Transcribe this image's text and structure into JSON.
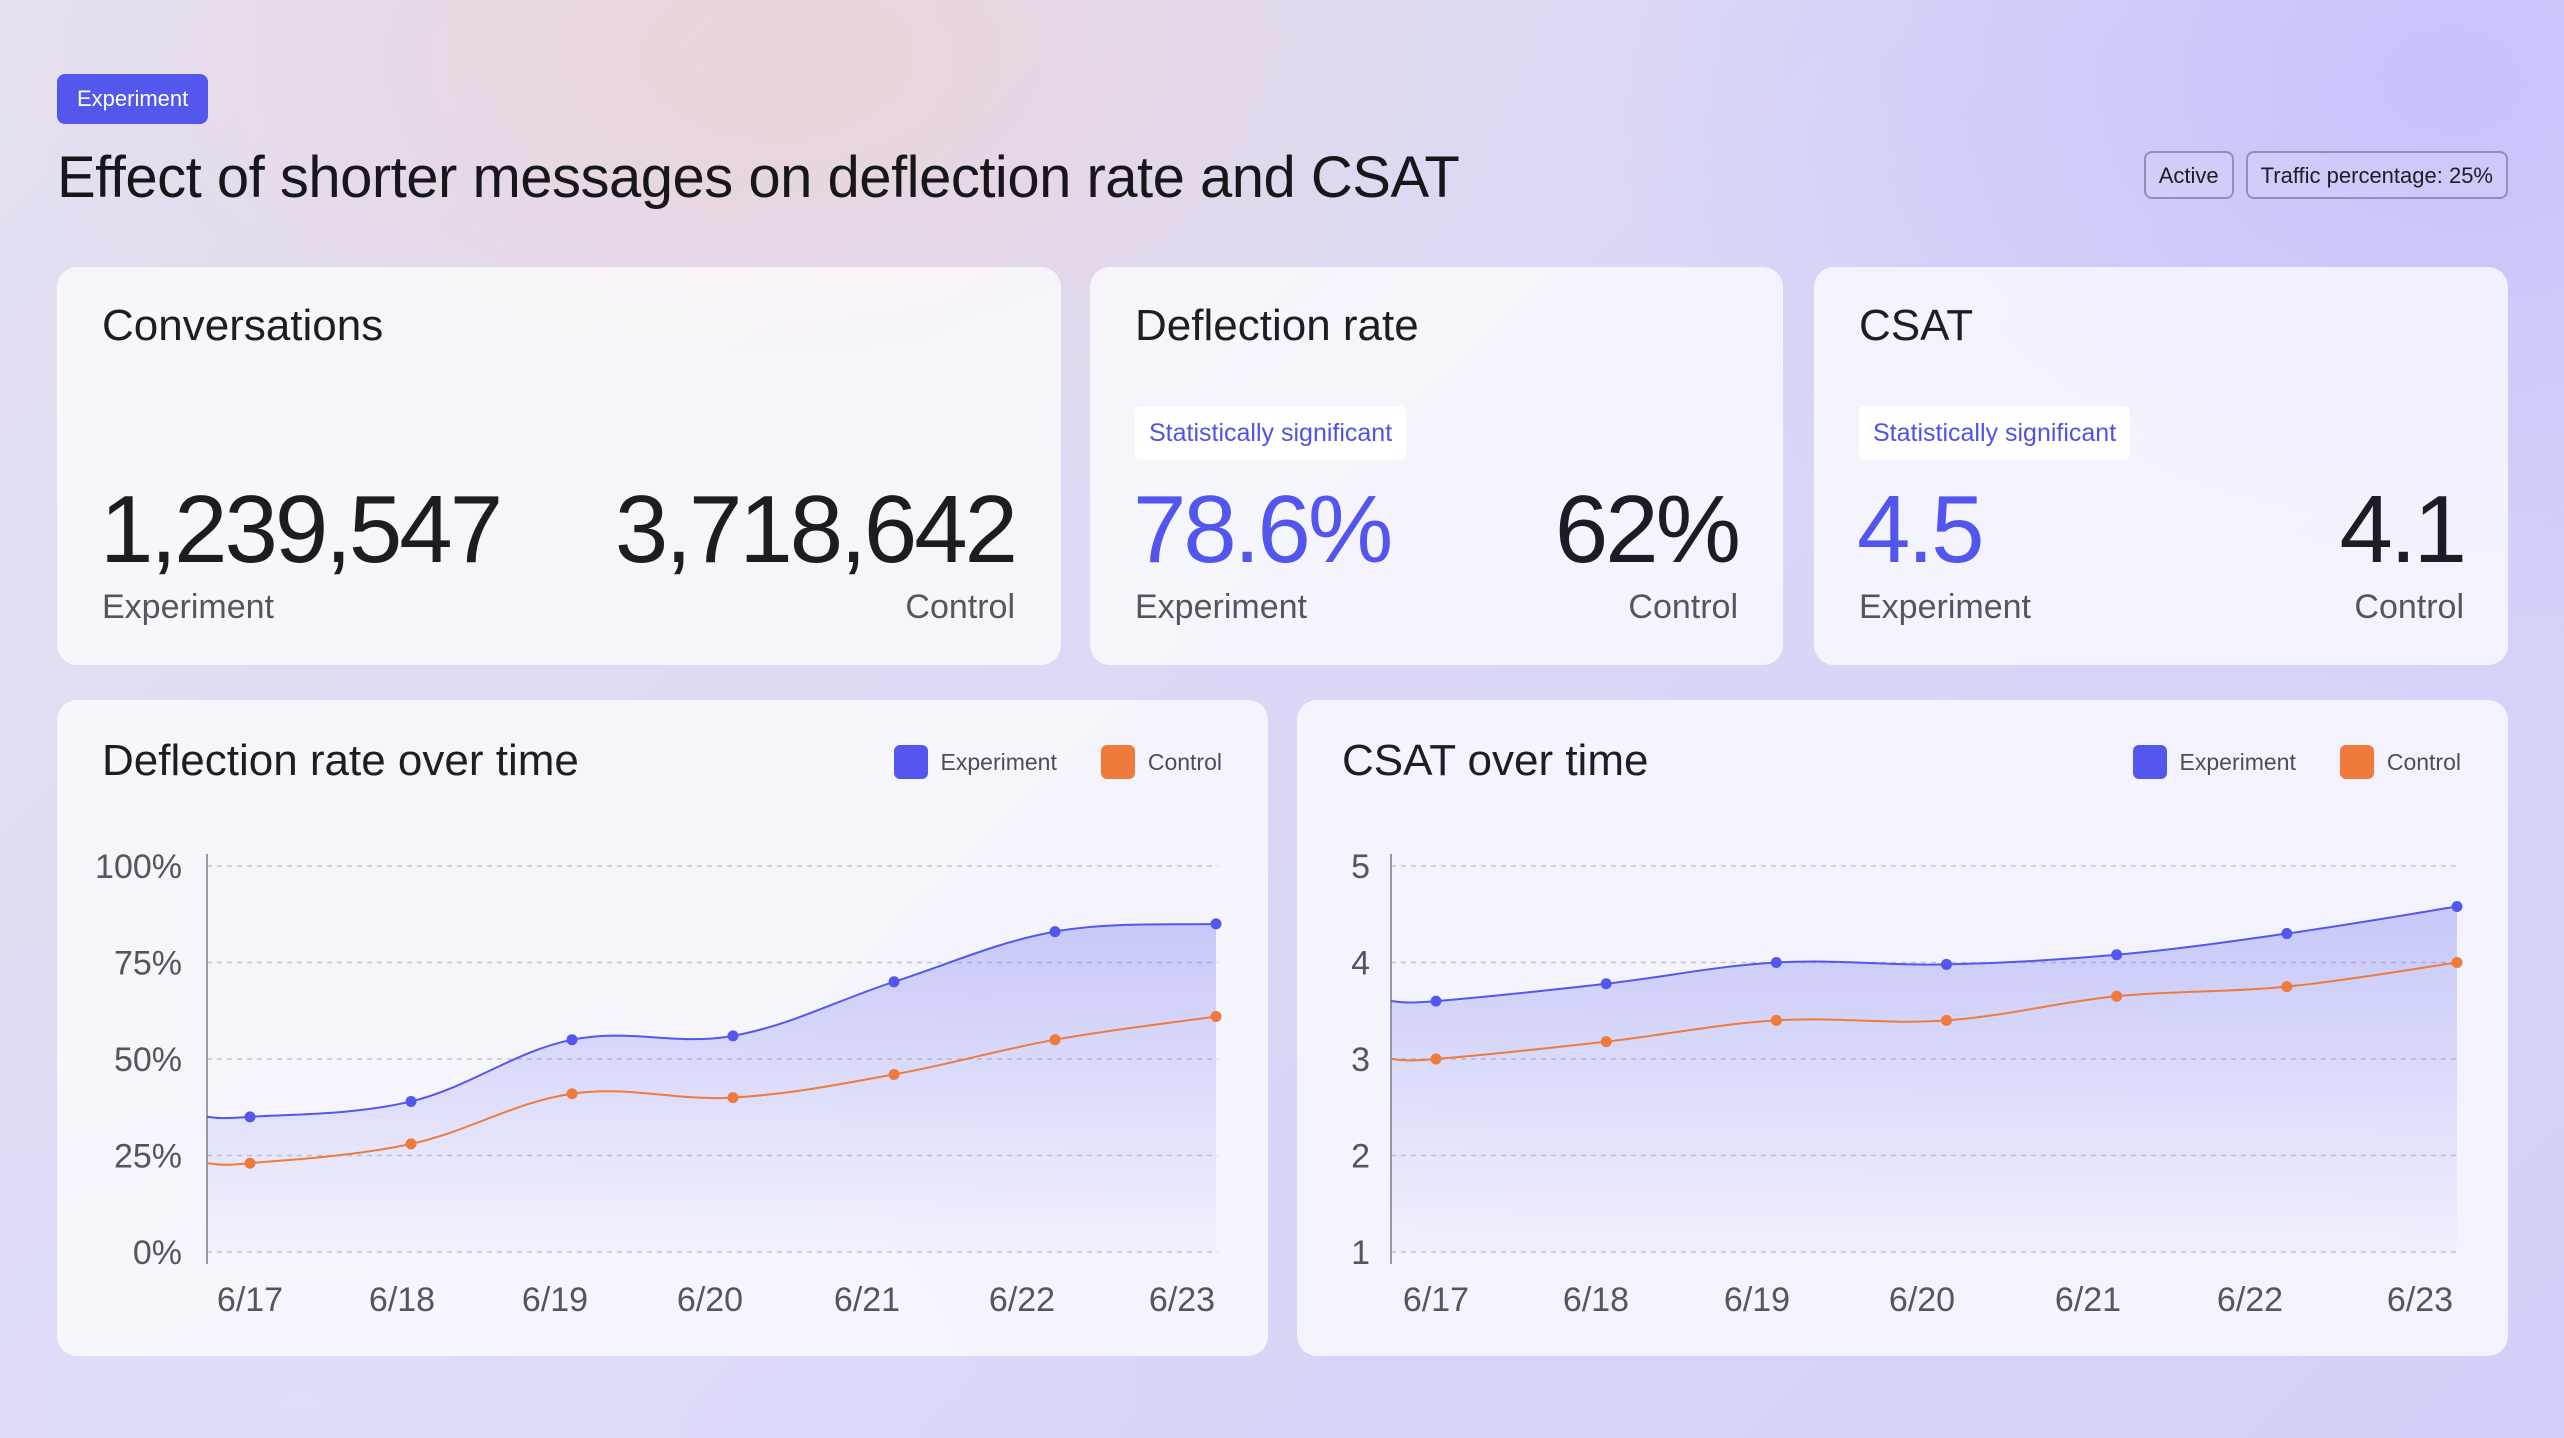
{
  "header": {
    "tag": "Experiment",
    "title": "Effect of shorter messages on deflection rate and CSAT",
    "status_chip": "Active",
    "traffic_chip": "Traffic percentage: 25%"
  },
  "stats": {
    "conversations": {
      "title": "Conversations",
      "experiment_value": "1,239,547",
      "experiment_label": "Experiment",
      "control_value": "3,718,642",
      "control_label": "Control"
    },
    "deflection": {
      "title": "Deflection rate",
      "badge": "Statistically significant",
      "experiment_value": "78.6%",
      "experiment_label": "Experiment",
      "control_value": "62%",
      "control_label": "Control"
    },
    "csat": {
      "title": "CSAT",
      "badge": "Statistically significant",
      "experiment_value": "4.5",
      "experiment_label": "Experiment",
      "control_value": "4.1",
      "control_label": "Control"
    }
  },
  "colors": {
    "experiment": "#5457ee",
    "control": "#ee7a3c"
  },
  "chart_data": [
    {
      "type": "line",
      "title": "Deflection rate over time",
      "categories": [
        "6/17",
        "6/18",
        "6/19",
        "6/20",
        "6/21",
        "6/22",
        "6/23"
      ],
      "y_ticks": [
        "0%",
        "25%",
        "50%",
        "75%",
        "100%"
      ],
      "ylim": [
        0,
        100
      ],
      "grid": true,
      "legend_position": "top-right",
      "series": [
        {
          "name": "Experiment",
          "values": [
            35,
            39,
            55,
            56,
            70,
            83,
            85
          ]
        },
        {
          "name": "Control",
          "values": [
            23,
            28,
            41,
            40,
            46,
            55,
            61
          ]
        }
      ]
    },
    {
      "type": "line",
      "title": "CSAT over time",
      "categories": [
        "6/17",
        "6/18",
        "6/19",
        "6/20",
        "6/21",
        "6/22",
        "6/23"
      ],
      "y_ticks": [
        "1",
        "2",
        "3",
        "4",
        "5"
      ],
      "ylim": [
        1,
        5
      ],
      "grid": true,
      "legend_position": "top-right",
      "series": [
        {
          "name": "Experiment",
          "values": [
            3.6,
            3.78,
            4.0,
            3.98,
            4.08,
            4.3,
            4.58
          ]
        },
        {
          "name": "Control",
          "values": [
            3.0,
            3.18,
            3.4,
            3.4,
            3.65,
            3.75,
            4.0
          ]
        }
      ]
    }
  ]
}
